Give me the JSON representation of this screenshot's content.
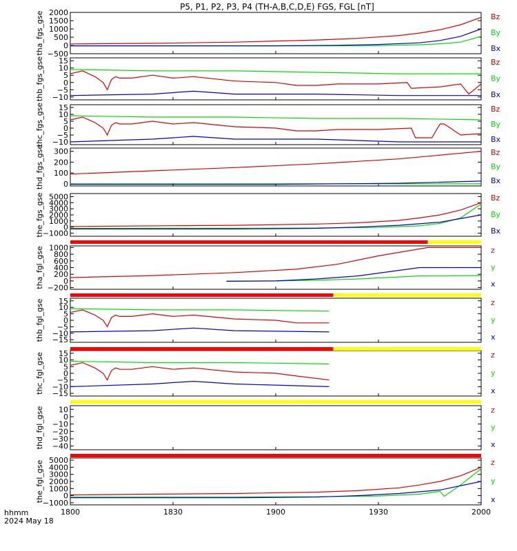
{
  "title": "P5, P1, P2, P3, P4 (TH-A,B,C,D,E) FGS, FGL [nT]",
  "footer": {
    "time_label": "hhmm",
    "date_label": "2024 May 18"
  },
  "x_axis": {
    "ticks": [
      "1800",
      "1830",
      "1900",
      "1930",
      "2000"
    ]
  },
  "colors": {
    "x": "#0000cc",
    "y": "#00dd00",
    "z": "#dd0000",
    "bar_red": "#ff0000",
    "bar_yellow": "#ffff00",
    "bar_black": "#000000"
  },
  "chart_data": [
    {
      "type": "line",
      "ylabel": "tha_fgs_gse",
      "yticks": [
        "2000",
        "1500",
        "1000",
        "500",
        "0",
        "−500"
      ],
      "ylim": [
        -500,
        2000
      ],
      "legend": [
        "Bz",
        "By",
        "Bx"
      ],
      "series": [
        {
          "name": "Bz",
          "x": [
            0,
            20,
            40,
            60,
            70,
            80,
            85,
            90,
            95,
            100
          ],
          "values": [
            90,
            130,
            200,
            330,
            430,
            600,
            750,
            950,
            1250,
            1700
          ]
        },
        {
          "name": "By",
          "x": [
            0,
            50,
            65,
            75,
            85,
            90,
            95,
            100
          ],
          "values": [
            -30,
            -30,
            -20,
            -10,
            40,
            100,
            200,
            550
          ]
        },
        {
          "name": "Bx",
          "x": [
            0,
            50,
            65,
            75,
            85,
            90,
            95,
            100
          ],
          "values": [
            -20,
            -20,
            10,
            60,
            160,
            300,
            550,
            1000
          ]
        }
      ]
    },
    {
      "type": "line",
      "ylabel": "thb_fgs_gse",
      "yticks": [
        "15",
        "10",
        "5",
        "0",
        "−5",
        "−10"
      ],
      "ylim": [
        -12,
        17
      ],
      "legend": [
        "Bz",
        "By",
        "Bx"
      ],
      "series": [
        {
          "name": "Bz",
          "x": [
            0,
            3,
            6,
            8,
            9,
            10,
            11,
            12,
            15,
            20,
            25,
            30,
            40,
            50,
            55,
            60,
            65,
            75,
            82,
            83,
            90,
            95,
            97,
            100
          ],
          "values": [
            6,
            8,
            4,
            0,
            -5,
            2,
            4,
            3,
            3,
            5,
            3,
            4,
            1,
            0,
            -2,
            -2,
            -1,
            -1,
            0,
            -4,
            -3,
            -1,
            -8,
            -1
          ]
        },
        {
          "name": "By",
          "x": [
            0,
            20,
            40,
            60,
            80,
            100
          ],
          "values": [
            9,
            8,
            8,
            7,
            6,
            6
          ]
        },
        {
          "name": "Bx",
          "x": [
            0,
            20,
            30,
            40,
            60,
            80,
            100
          ],
          "values": [
            -9,
            -8,
            -6,
            -8,
            -8,
            -9,
            -9
          ]
        }
      ]
    },
    {
      "type": "line",
      "ylabel": "thc_fgs_gse",
      "yticks": [
        "15",
        "10",
        "5",
        "0",
        "−5",
        "−10"
      ],
      "ylim": [
        -12,
        17
      ],
      "legend": [
        "Bz",
        "By",
        "Bx"
      ],
      "series": [
        {
          "name": "Bz",
          "x": [
            0,
            3,
            6,
            8,
            9,
            10,
            11,
            12,
            15,
            20,
            25,
            30,
            40,
            50,
            55,
            60,
            65,
            75,
            83,
            84,
            88,
            90,
            91,
            95,
            100
          ],
          "values": [
            6,
            8,
            4,
            0,
            -5,
            2,
            4,
            3,
            3,
            5,
            3,
            4,
            1,
            0,
            -2,
            -2,
            -1,
            -1,
            0,
            -7,
            -7,
            3,
            3,
            -5,
            -4
          ]
        },
        {
          "name": "By",
          "x": [
            0,
            20,
            40,
            60,
            80,
            100
          ],
          "values": [
            9,
            8,
            8,
            7,
            7,
            6
          ]
        },
        {
          "name": "Bx",
          "x": [
            0,
            20,
            30,
            40,
            60,
            80,
            100
          ],
          "values": [
            -10,
            -8,
            -6,
            -8,
            -8,
            -10,
            -10
          ]
        }
      ]
    },
    {
      "type": "line",
      "ylabel": "thd_fgs_gse",
      "yticks": [
        "300",
        "200",
        "100",
        "0"
      ],
      "ylim": [
        -20,
        330
      ],
      "legend": [
        "Bz",
        "By",
        "Bx"
      ],
      "series": [
        {
          "name": "Bz",
          "x": [
            0,
            20,
            40,
            60,
            80,
            100
          ],
          "values": [
            90,
            120,
            150,
            185,
            230,
            300
          ]
        },
        {
          "name": "By",
          "x": [
            0,
            100
          ],
          "values": [
            0,
            0
          ]
        },
        {
          "name": "Bx",
          "x": [
            0,
            50,
            80,
            100
          ],
          "values": [
            -5,
            -5,
            5,
            25
          ]
        }
      ]
    },
    {
      "type": "line",
      "ylabel": "the_fgs_gse",
      "yticks": [
        "5000",
        "4000",
        "3000",
        "2000",
        "1000",
        "0",
        "−1000"
      ],
      "ylim": [
        -1500,
        5500
      ],
      "legend": [
        "Bz",
        "By",
        "Bx"
      ],
      "series": [
        {
          "name": "Bz",
          "x": [
            0,
            40,
            60,
            70,
            80,
            85,
            90,
            95,
            100
          ],
          "values": [
            100,
            300,
            500,
            700,
            1100,
            1500,
            2000,
            2800,
            4000
          ]
        },
        {
          "name": "By",
          "x": [
            0,
            40,
            60,
            75,
            85,
            90,
            95,
            100
          ],
          "values": [
            -200,
            -200,
            -150,
            -50,
            200,
            600,
            1500,
            3800
          ]
        },
        {
          "name": "Bx",
          "x": [
            0,
            40,
            60,
            70,
            80,
            90,
            100
          ],
          "values": [
            -300,
            -300,
            -200,
            0,
            300,
            800,
            2000
          ]
        }
      ]
    },
    {
      "type": "line",
      "ylabel": "tha_fgl_gse",
      "yticks": [
        "1000",
        "800",
        "600",
        "400",
        "200",
        "0",
        "−200"
      ],
      "ylim": [
        -250,
        1050
      ],
      "legend": [
        "z",
        "y",
        "x"
      ],
      "series": [
        {
          "name": "z",
          "x": [
            0,
            20,
            40,
            55,
            65,
            75,
            87,
            100
          ],
          "values": [
            100,
            160,
            250,
            350,
            500,
            750,
            1000,
            1000
          ]
        },
        {
          "name": "y",
          "x": [
            38,
            50,
            60,
            70,
            80,
            85,
            100
          ],
          "values": [
            -5,
            0,
            20,
            60,
            120,
            150,
            160
          ]
        },
        {
          "name": "x",
          "x": [
            38,
            50,
            60,
            70,
            85,
            100
          ],
          "values": [
            -10,
            0,
            60,
            150,
            400,
            400
          ]
        }
      ]
    },
    {
      "type": "line",
      "ylabel": "thb_fgl_gse",
      "yticks": [
        "15",
        "10",
        "5",
        "0",
        "−5",
        "−10",
        "−15"
      ],
      "ylim": [
        -17,
        17
      ],
      "legend": [
        "z",
        "y",
        "x"
      ],
      "series": [
        {
          "name": "z",
          "x": [
            0,
            3,
            6,
            8,
            9,
            10,
            11,
            12,
            15,
            20,
            25,
            30,
            40,
            50,
            55,
            63
          ],
          "values": [
            6,
            8,
            4,
            0,
            -5,
            2,
            4,
            3,
            3,
            5,
            3,
            4,
            1,
            0,
            -2,
            -2
          ]
        },
        {
          "name": "y",
          "x": [
            0,
            20,
            40,
            63
          ],
          "values": [
            9,
            8,
            8,
            7
          ]
        },
        {
          "name": "x",
          "x": [
            0,
            20,
            30,
            40,
            63
          ],
          "values": [
            -9,
            -8,
            -6,
            -8,
            -9
          ]
        }
      ]
    },
    {
      "type": "line",
      "ylabel": "thc_fgl_gse",
      "yticks": [
        "15",
        "10",
        "5",
        "0",
        "−5",
        "−10",
        "−15"
      ],
      "ylim": [
        -17,
        17
      ],
      "legend": [
        "z",
        "y",
        "x"
      ],
      "series": [
        {
          "name": "z",
          "x": [
            0,
            3,
            6,
            8,
            9,
            10,
            11,
            12,
            15,
            20,
            25,
            30,
            40,
            50,
            55,
            63
          ],
          "values": [
            6,
            8,
            4,
            0,
            -5,
            2,
            4,
            3,
            3,
            5,
            3,
            4,
            1,
            0,
            -2,
            -5
          ]
        },
        {
          "name": "y",
          "x": [
            0,
            20,
            40,
            63
          ],
          "values": [
            9,
            8,
            8,
            7
          ]
        },
        {
          "name": "x",
          "x": [
            0,
            20,
            30,
            40,
            63
          ],
          "values": [
            -10,
            -8,
            -6,
            -8,
            -10
          ]
        }
      ]
    },
    {
      "type": "line",
      "ylabel": "thd_fgl_gse",
      "yticks": [
        "10",
        "0",
        "−10",
        "−20",
        "−30",
        "−40"
      ],
      "ylim": [
        -45,
        15
      ],
      "legend": [
        "z",
        "y",
        "x"
      ],
      "series": []
    },
    {
      "type": "line",
      "ylabel": "the_fgl_gse",
      "yticks": [
        "5000",
        "4000",
        "3000",
        "2000",
        "1000",
        "0",
        "−1000"
      ],
      "ylim": [
        -1300,
        5300
      ],
      "legend": [
        "z",
        "y",
        "x"
      ],
      "series": [
        {
          "name": "z",
          "x": [
            0,
            40,
            60,
            70,
            80,
            85,
            90,
            95,
            100
          ],
          "values": [
            100,
            300,
            500,
            700,
            1100,
            1500,
            2000,
            2800,
            4000
          ]
        },
        {
          "name": "y",
          "x": [
            0,
            40,
            60,
            75,
            85,
            90,
            91,
            95,
            100
          ],
          "values": [
            -200,
            -200,
            -150,
            -50,
            200,
            600,
            -100,
            1500,
            3800
          ]
        },
        {
          "name": "x",
          "x": [
            0,
            40,
            60,
            70,
            80,
            90,
            100
          ],
          "values": [
            -300,
            -300,
            -200,
            0,
            300,
            800,
            2000
          ]
        }
      ]
    }
  ],
  "status_bars": [
    [
      {
        "from": 0,
        "to": 87,
        "color": "bar_red"
      },
      {
        "from": 87,
        "to": 100,
        "color": "bar_yellow"
      }
    ],
    [
      {
        "from": 0,
        "to": 64,
        "color": "bar_red"
      },
      {
        "from": 64,
        "to": 100,
        "color": "bar_yellow"
      }
    ],
    [
      {
        "from": 0,
        "to": 64,
        "color": "bar_red"
      },
      {
        "from": 64,
        "to": 100,
        "color": "bar_yellow"
      }
    ],
    [
      {
        "from": 0,
        "to": 100,
        "color": "bar_yellow"
      }
    ],
    [
      {
        "from": 0,
        "to": 100,
        "color": "bar_red"
      }
    ]
  ]
}
